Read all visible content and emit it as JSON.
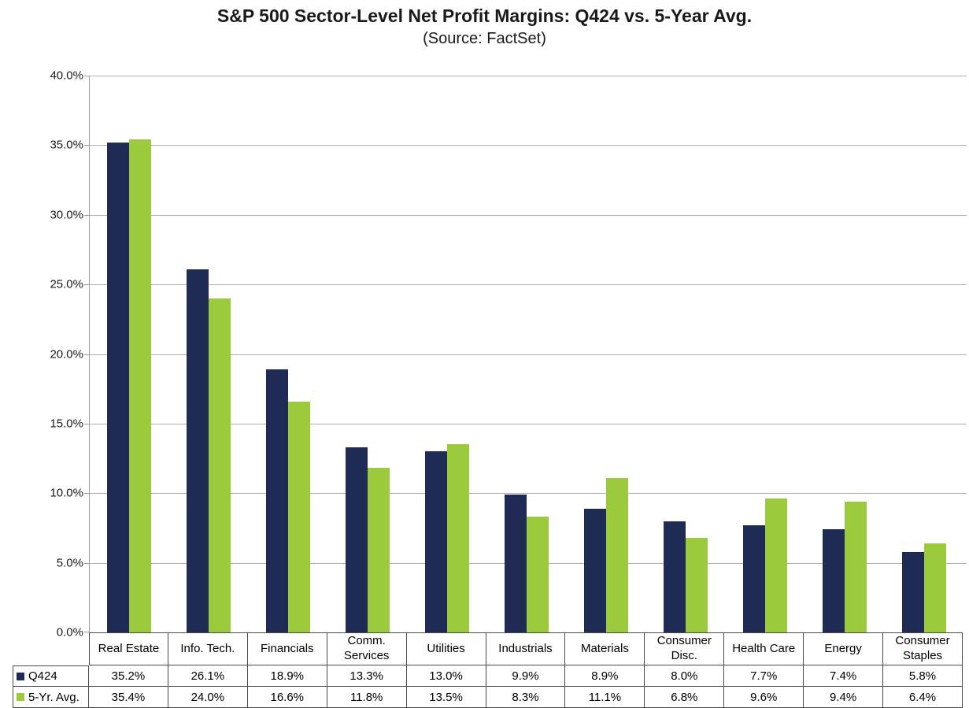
{
  "header": {
    "title": "S&P 500 Sector-Level Net Profit Margins: Q424 vs. 5-Year Avg.",
    "subtitle": "(Source: FactSet)"
  },
  "chart_data": {
    "type": "bar",
    "title": "S&P 500 Sector-Level Net Profit Margins: Q424 vs. 5-Year Avg.",
    "subtitle": "(Source: FactSet)",
    "categories": [
      "Real Estate",
      "Info. Tech.",
      "Financials",
      "Comm. Services",
      "Utilities",
      "Industrials",
      "Materials",
      "Consumer Disc.",
      "Health Care",
      "Energy",
      "Consumer Staples"
    ],
    "series": [
      {
        "name": "Q424",
        "color": "#1F2A55",
        "values": [
          35.2,
          26.1,
          18.9,
          13.3,
          13.0,
          9.9,
          8.9,
          8.0,
          7.7,
          7.4,
          5.8
        ]
      },
      {
        "name": "5-Yr. Avg.",
        "color": "#9BCA3C",
        "values": [
          35.4,
          24.0,
          16.6,
          11.8,
          13.5,
          8.3,
          11.1,
          6.8,
          9.6,
          9.4,
          6.4
        ]
      }
    ],
    "ylim": [
      0,
      40
    ],
    "y_tick_step": 5,
    "y_tick_labels": [
      "0.0%",
      "5.0%",
      "10.0%",
      "15.0%",
      "20.0%",
      "25.0%",
      "30.0%",
      "35.0%",
      "40.0%"
    ],
    "grid": true,
    "legend_position": "data-table-left",
    "value_suffix": "%"
  },
  "colors": {
    "bar_q424": "#1F2A55",
    "bar_5yr_avg": "#9BCA3C",
    "gridline": "#B0B0B0",
    "axis_line": "#9B9B9B",
    "table_border": "#4A4A4A",
    "text": "#1A1A1A",
    "background": "#FFFFFF"
  }
}
